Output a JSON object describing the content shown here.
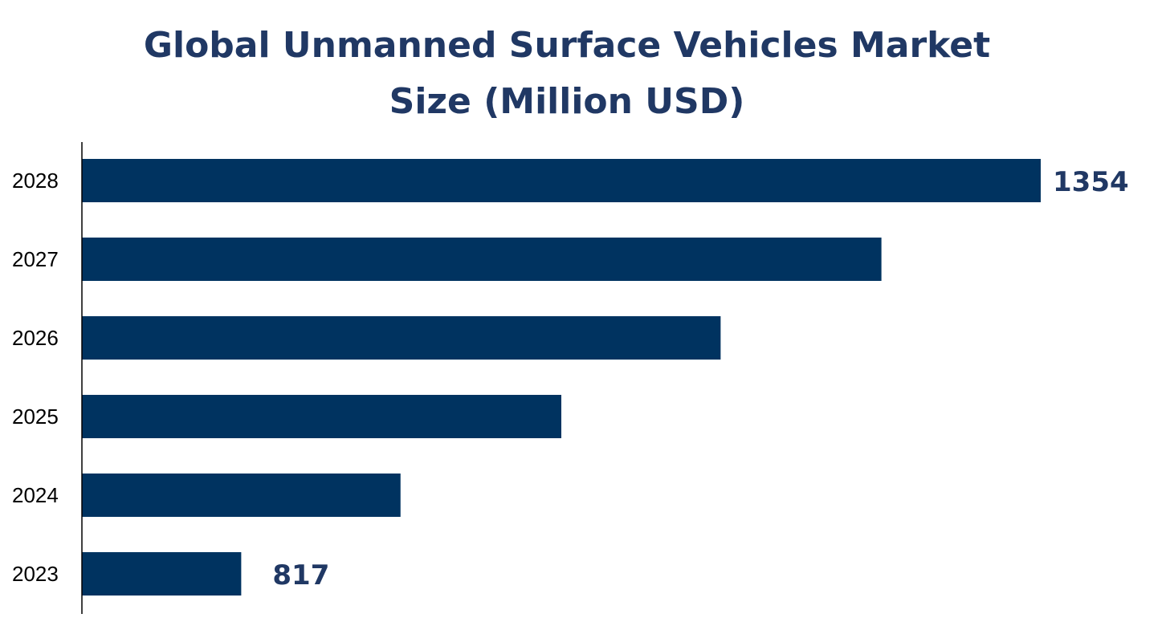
{
  "chart_data": {
    "type": "bar",
    "orientation": "horizontal",
    "title": "Global Unmanned Surface Vehicles Market Size (Million USD)",
    "title_lines": [
      "Global Unmanned Surface Vehicles Market",
      "Size (Million USD)"
    ],
    "categories": [
      "2023",
      "2024",
      "2025",
      "2026",
      "2027",
      "2028"
    ],
    "values": [
      817,
      924,
      1032,
      1139,
      1247,
      1354
    ],
    "data_labels": {
      "2023": "817",
      "2028": "1354"
    },
    "xlabel": "",
    "ylabel": "",
    "xlim": [
      710,
      1354
    ],
    "grid": false,
    "legend": "none",
    "colors": {
      "bar": "#003360",
      "title": "#203864",
      "data_label": "#203864",
      "axis": "#000000"
    }
  }
}
